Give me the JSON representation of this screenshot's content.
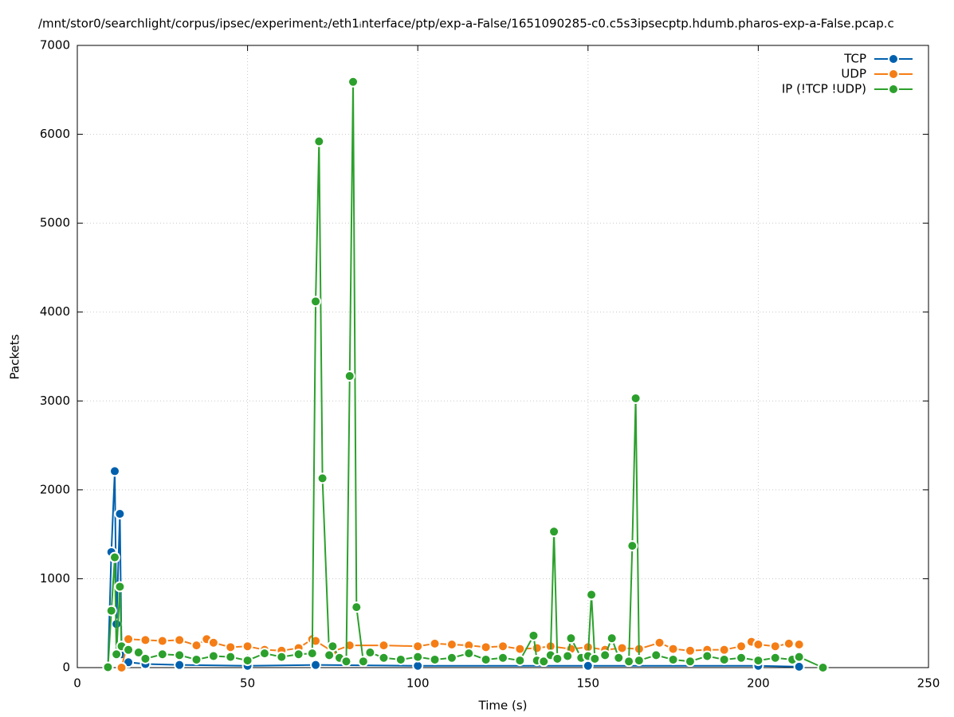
{
  "chart_data": {
    "type": "line",
    "title": "/mnt/stor0/searchlight/corpus/ipsec/experiment₂/eth1ᵢnterface/ptp/exp-a-False/1651090285-c0.c5s3ipsecptp.hdumb.pharos-exp-a-False.pcap.c",
    "x_label": "Time (s)",
    "y_label": "Packets",
    "xlim": [
      0,
      250
    ],
    "xticks": [
      0,
      50,
      100,
      150,
      200,
      250
    ],
    "ylim": [
      0,
      7000
    ],
    "yticks": [
      0,
      1000,
      2000,
      3000,
      4000,
      5000,
      6000,
      7000
    ],
    "grid": true,
    "legend": "top-right",
    "series": [
      {
        "name": "TCP",
        "color": "#0060ad",
        "x": [
          9,
          10,
          11,
          11.5,
          12.5,
          13,
          15,
          20,
          30,
          50,
          70,
          100,
          150,
          200,
          212
        ],
        "values": [
          0,
          1300,
          2210,
          490,
          1730,
          150,
          60,
          40,
          30,
          20,
          30,
          20,
          20,
          20,
          10
        ]
      },
      {
        "name": "UDP",
        "color": "#f57d15",
        "x": [
          13,
          15,
          20,
          25,
          30,
          35,
          38,
          40,
          45,
          50,
          55,
          60,
          65,
          69,
          70,
          75,
          80,
          90,
          100,
          105,
          110,
          115,
          120,
          125,
          130,
          135,
          139,
          145,
          150,
          155,
          160,
          165,
          171,
          175,
          180,
          185,
          190,
          195,
          198,
          200,
          205,
          209,
          212
        ],
        "values": [
          0,
          320,
          310,
          300,
          310,
          250,
          320,
          280,
          230,
          240,
          200,
          190,
          220,
          320,
          300,
          180,
          250,
          250,
          240,
          270,
          260,
          250,
          230,
          240,
          210,
          220,
          240,
          210,
          230,
          200,
          220,
          210,
          280,
          210,
          190,
          200,
          200,
          240,
          290,
          260,
          240,
          270,
          260
        ]
      },
      {
        "name": "IP (!TCP  !UDP)",
        "color": "#2ca02c",
        "x": [
          9,
          10,
          11,
          11.5,
          12.5,
          13,
          15,
          18,
          20,
          25,
          30,
          35,
          40,
          45,
          50,
          55,
          60,
          65,
          69,
          70,
          71,
          72,
          74,
          75,
          77,
          79,
          80,
          81,
          82,
          84,
          86,
          90,
          95,
          100,
          105,
          110,
          115,
          120,
          125,
          130,
          134,
          135,
          137,
          139,
          140,
          141,
          144,
          145,
          148,
          150,
          151,
          152,
          155,
          157,
          159,
          162,
          163,
          164,
          165,
          170,
          175,
          180,
          185,
          190,
          195,
          200,
          205,
          210,
          212,
          219
        ],
        "values": [
          5,
          640,
          1240,
          150,
          910,
          240,
          200,
          170,
          100,
          150,
          140,
          90,
          130,
          120,
          80,
          160,
          120,
          150,
          160,
          4120,
          5920,
          2130,
          140,
          240,
          110,
          70,
          3280,
          6590,
          680,
          70,
          170,
          110,
          90,
          120,
          90,
          110,
          160,
          90,
          110,
          80,
          360,
          80,
          70,
          140,
          1530,
          100,
          130,
          330,
          110,
          130,
          820,
          100,
          140,
          330,
          110,
          70,
          1370,
          3030,
          80,
          140,
          90,
          70,
          130,
          90,
          110,
          80,
          110,
          90,
          120,
          0
        ]
      }
    ]
  }
}
